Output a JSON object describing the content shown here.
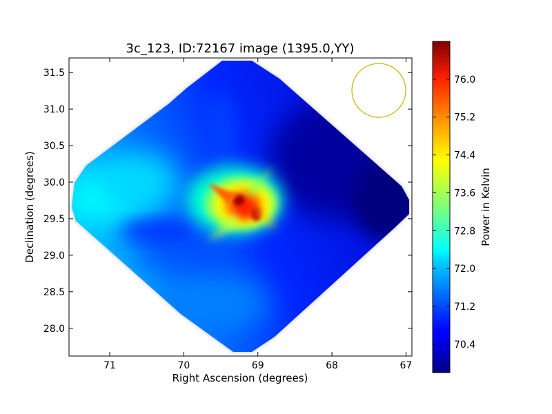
{
  "chart_data": {
    "type": "heatmap",
    "title": "3c_123, ID:72167 image (1395.0,YY)",
    "xlabel": "Right Ascension (degrees)",
    "ylabel": "Declination (degrees)",
    "xlim": [
      71.55,
      66.92
    ],
    "ylim": [
      27.62,
      31.7
    ],
    "x_ticks": [
      71,
      70,
      69,
      68,
      67
    ],
    "y_ticks": [
      28.0,
      28.5,
      29.0,
      29.5,
      30.0,
      30.5,
      31.0,
      31.5
    ],
    "colorbar": {
      "label": "Power in Kelvin",
      "range": [
        69.8,
        76.8
      ],
      "ticks": [
        "70.4",
        "71.2",
        "72.0",
        "72.8",
        "73.6",
        "74.4",
        "75.2",
        "76.0"
      ],
      "colormap": "jet"
    },
    "colors": {
      "background_high": "#0015ff",
      "background_low": "#00007f",
      "hot_core": "#b00000",
      "beam_circle": "#c8b400"
    }
  }
}
